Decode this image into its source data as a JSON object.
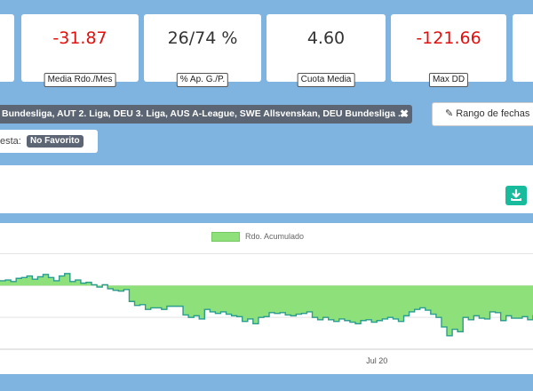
{
  "stats": [
    {
      "value": "-31.87",
      "label": "Media Rdo./Mes",
      "color": "#e01010"
    },
    {
      "value": "26/74 %",
      "label": "% Ap. G./P.",
      "color": "#333333"
    },
    {
      "value": "4.60",
      "label": "Cuota Media",
      "color": "#333333"
    },
    {
      "value": "-121.66",
      "label": "Max DD",
      "color": "#e01010"
    }
  ],
  "filters": {
    "leagues_tag": "Bundesliga, AUT 2. Liga, DEU 3. Liga, AUS A-League, SWE Allsvenskan, DEU Bundesliga ...",
    "remove_icon": "close-icon",
    "date_range_label": "Rango de fechas",
    "date_range_icon": "pencil-icon",
    "bet_type_label": "esta:",
    "bet_type_value": "No Favorito"
  },
  "toolbar": {
    "download_icon": "download-icon"
  },
  "chart_data": {
    "type": "area",
    "title": "",
    "xlabel": "",
    "ylabel": "",
    "series": [
      {
        "name": "Rdo. Acumulado",
        "fill_color": "#8ee07a",
        "line_color": "#2a9d8f",
        "points": [
          6,
          7,
          5,
          9,
          10,
          12,
          8,
          11,
          14,
          10,
          6,
          12,
          15,
          5,
          7,
          3,
          4,
          1,
          -2,
          1,
          -4,
          -6,
          -7,
          -5,
          -20,
          -25,
          -24,
          -30,
          -28,
          -28,
          -30,
          -26,
          -26,
          -26,
          -37,
          -40,
          -38,
          -42,
          -30,
          -33,
          -35,
          -33,
          -36,
          -38,
          -39,
          -45,
          -42,
          -48,
          -40,
          -39,
          -34,
          -35,
          -34,
          -37,
          -38,
          -36,
          -35,
          -33,
          -40,
          -43,
          -40,
          -43,
          -45,
          -42,
          -44,
          -46,
          -48,
          -44,
          -43,
          -46,
          -44,
          -42,
          -40,
          -42,
          -45,
          -38,
          -33,
          -30,
          -28,
          -31,
          -36,
          -40,
          -52,
          -63,
          -55,
          -58,
          -40,
          -43,
          -38,
          -41,
          -42,
          -33,
          -34,
          -44,
          -38,
          -41,
          -41,
          -39,
          -43,
          -37
        ]
      }
    ],
    "ylim": [
      -80,
      45
    ],
    "y_gridlines": [
      40,
      0,
      -40
    ],
    "x_ticks": [
      {
        "label": "Jul 20",
        "index": 70
      }
    ],
    "grid": true,
    "legend": "top-center"
  }
}
